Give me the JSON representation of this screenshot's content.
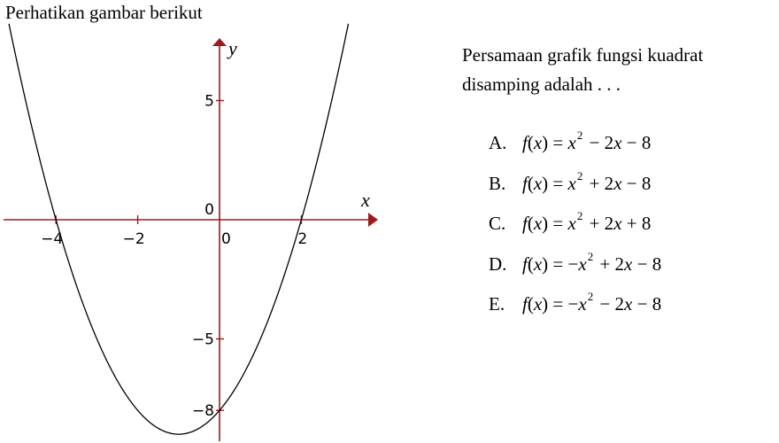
{
  "header": {
    "title": "Perhatikan gambar berikut"
  },
  "question": {
    "text": "Persamaan grafik fungsi kuadrat disamping adalah . . ."
  },
  "options": [
    {
      "label": "A.",
      "parts": [
        "f",
        "(",
        "x",
        ") = ",
        "x",
        "2",
        " − 2",
        "x",
        " − 8"
      ]
    },
    {
      "label": "B.",
      "parts": [
        "f",
        "(",
        "x",
        ") = ",
        "x",
        "2",
        " + 2",
        "x",
        " − 8"
      ]
    },
    {
      "label": "C.",
      "parts": [
        "f",
        "(",
        "x",
        ") = ",
        "x",
        "2",
        " + 2",
        "x",
        " + 8"
      ]
    },
    {
      "label": "D.",
      "parts": [
        "f",
        "(",
        "x",
        ") = −",
        "x",
        "2",
        " + 2",
        "x",
        " − 8"
      ]
    },
    {
      "label": "E.",
      "parts": [
        "f",
        "(",
        "x",
        ") = −",
        "x",
        "2",
        " − 2",
        "x",
        " − 8"
      ]
    }
  ],
  "graph": {
    "x_axis_label": "x",
    "y_axis_label": "y",
    "x_ticks": [
      {
        "value": -4,
        "label": "−4"
      },
      {
        "value": -2,
        "label": "−2"
      },
      {
        "value": 0,
        "label": "0"
      },
      {
        "value": 2,
        "label": "2"
      }
    ],
    "y_ticks": [
      {
        "value": 5,
        "label": "5"
      },
      {
        "value": 0,
        "label": "0"
      },
      {
        "value": -5,
        "label": "−5"
      },
      {
        "value": -8,
        "label": "−8"
      }
    ],
    "curve": {
      "a": 1,
      "b": 2,
      "c": -8,
      "x_range": [
        -5.15,
        3.15
      ]
    },
    "line_color": "#000000",
    "axis_color": "#9b1b1b"
  }
}
